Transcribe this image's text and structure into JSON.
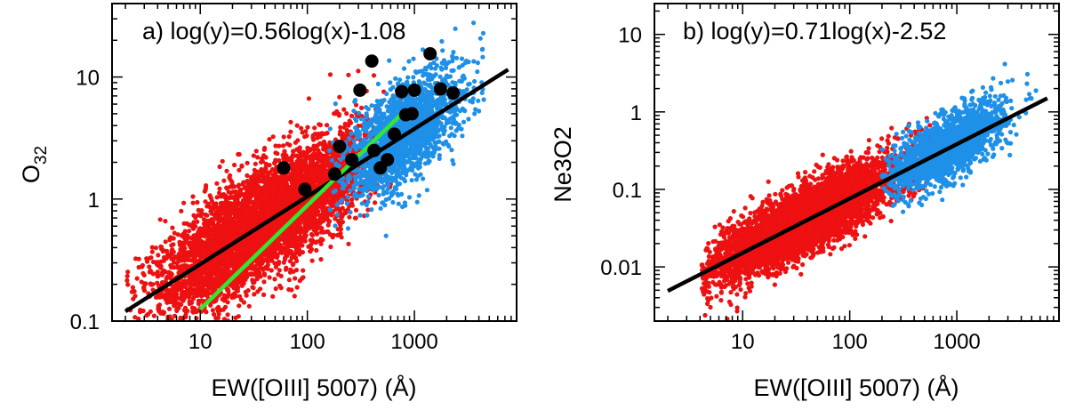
{
  "chart_data": [
    {
      "type": "scatter",
      "panel": "a",
      "annotation": "a) log(y)=0.56log(x)-1.08",
      "xlabel": "EW([OIII] 5007) (Å)",
      "ylabel_main": "O",
      "ylabel_sub": "32",
      "xscale": "log",
      "yscale": "log",
      "xlim": [
        1.5,
        9000
      ],
      "ylim": [
        0.1,
        40
      ],
      "xticklabels": [
        {
          "value": 10,
          "label": "10"
        },
        {
          "value": 100,
          "label": "100"
        },
        {
          "value": 1000,
          "label": "1000"
        }
      ],
      "yticklabels": [
        {
          "value": 0.1,
          "label": "0.1"
        },
        {
          "value": 1,
          "label": "1"
        },
        {
          "value": 10,
          "label": "10"
        }
      ],
      "colors": {
        "red": "#ee1111",
        "blue": "#1e90e8",
        "black": "#000000",
        "green": "#33e633"
      },
      "series": [
        {
          "color": "red",
          "center_log_x": 1.6,
          "log_x_spread": 0.5,
          "log_x_range": [
            0.3,
            2.9
          ],
          "slope": 0.56,
          "intercept": -1.08,
          "log_y_scatter": 0.22,
          "count": 5200
        },
        {
          "color": "blue",
          "center_log_x": 2.9,
          "log_x_spread": 0.28,
          "log_x_range": [
            2.2,
            3.75
          ],
          "slope": 0.56,
          "intercept": -1.08,
          "log_y_scatter": 0.2,
          "count": 1800
        },
        {
          "color": "black",
          "points": [
            {
              "x": 60,
              "y": 1.8
            },
            {
              "x": 95,
              "y": 1.2
            },
            {
              "x": 180,
              "y": 1.6
            },
            {
              "x": 200,
              "y": 2.7
            },
            {
              "x": 260,
              "y": 2.1
            },
            {
              "x": 310,
              "y": 7.8
            },
            {
              "x": 400,
              "y": 13.5
            },
            {
              "x": 420,
              "y": 2.5
            },
            {
              "x": 480,
              "y": 1.8
            },
            {
              "x": 560,
              "y": 2.1
            },
            {
              "x": 650,
              "y": 3.4
            },
            {
              "x": 760,
              "y": 7.6
            },
            {
              "x": 830,
              "y": 4.9
            },
            {
              "x": 950,
              "y": 5.0
            },
            {
              "x": 1000,
              "y": 7.8
            },
            {
              "x": 1400,
              "y": 15.5
            },
            {
              "x": 1750,
              "y": 8.0
            },
            {
              "x": 2300,
              "y": 7.4
            }
          ]
        }
      ],
      "fit_lines": [
        {
          "color": "black",
          "x": [
            2,
            7500
          ],
          "y": [
            0.12,
            11.5
          ]
        },
        {
          "color": "green",
          "x": [
            10,
            800
          ],
          "y": [
            0.125,
            5.2
          ]
        }
      ]
    },
    {
      "type": "scatter",
      "panel": "b",
      "annotation": "b) log(y)=0.71log(x)-2.52",
      "xlabel": "EW([OIII] 5007) (Å)",
      "ylabel_main": "Ne3O2",
      "ylabel_sub": "",
      "xscale": "log",
      "yscale": "log",
      "xlim": [
        1.5,
        9000
      ],
      "ylim": [
        0.002,
        25
      ],
      "xticklabels": [
        {
          "value": 10,
          "label": "10"
        },
        {
          "value": 100,
          "label": "100"
        },
        {
          "value": 1000,
          "label": "1000"
        }
      ],
      "yticklabels": [
        {
          "value": 0.01,
          "label": "0.01"
        },
        {
          "value": 0.1,
          "label": "0.1"
        },
        {
          "value": 1,
          "label": "1"
        },
        {
          "value": 10,
          "label": "10"
        }
      ],
      "colors": {
        "red": "#ee1111",
        "blue": "#1e90e8",
        "black": "#000000"
      },
      "series": [
        {
          "color": "red",
          "center_log_x": 1.6,
          "log_x_spread": 0.45,
          "log_x_range": [
            0.6,
            2.85
          ],
          "slope": 0.71,
          "intercept": -2.52,
          "log_y_scatter": 0.21,
          "count": 5200
        },
        {
          "color": "blue",
          "center_log_x": 2.9,
          "log_x_spread": 0.27,
          "log_x_range": [
            2.3,
            3.75
          ],
          "slope": 0.71,
          "intercept": -2.52,
          "log_y_scatter": 0.2,
          "count": 1800
        }
      ],
      "fit_lines": [
        {
          "color": "black",
          "x": [
            2,
            7000
          ],
          "y": [
            0.0049,
            1.5
          ]
        }
      ]
    }
  ]
}
